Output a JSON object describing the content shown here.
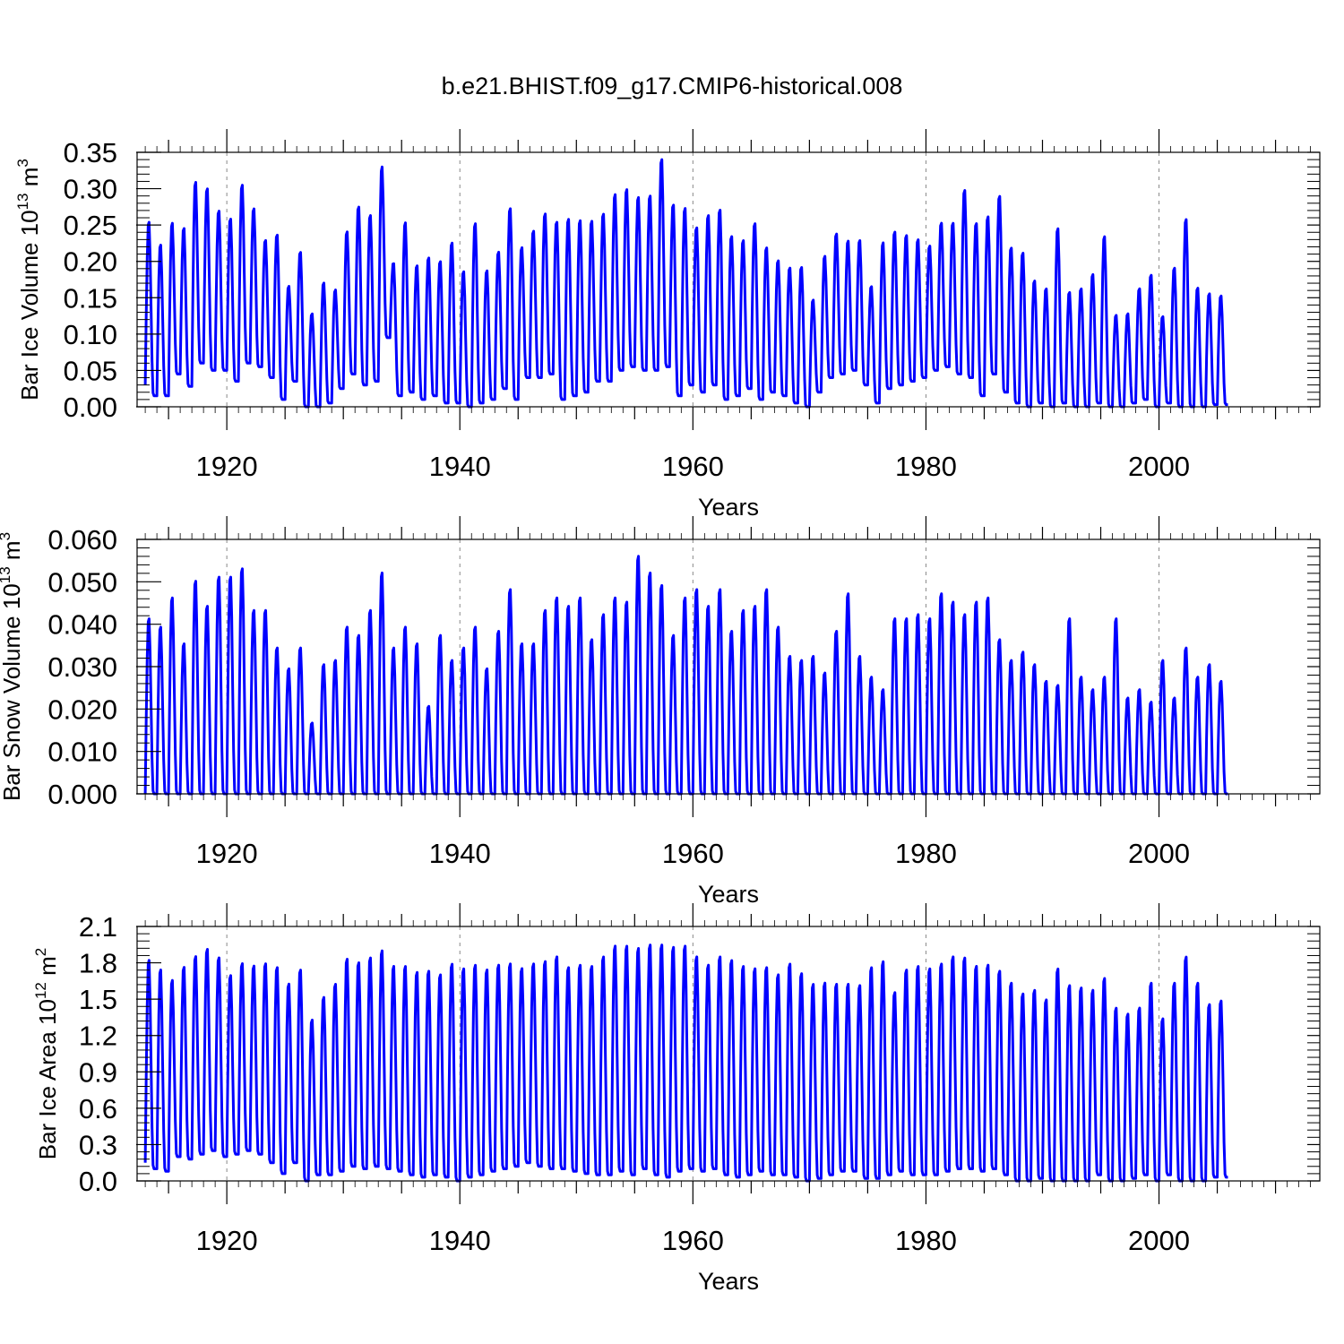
{
  "figure": {
    "title": "b.e21.BHIST.f09_g17.CMIP6-historical.008"
  },
  "style": {
    "line_color": "#0000ff",
    "grid_color": "#888888"
  },
  "chart_data": [
    {
      "type": "line",
      "name": "bar-ice-volume",
      "ylabel": "Bar Ice Volume 10",
      "yexp": "13",
      "yunit": " m",
      "yunit_sup": "3",
      "xlabel": "Years",
      "xlim": [
        1912.3,
        2013.8
      ],
      "ylim": [
        0,
        0.35
      ],
      "yticks": [
        0.0,
        0.05,
        0.1,
        0.15,
        0.2,
        0.25,
        0.3,
        0.35
      ],
      "yticklabels": [
        "0.00",
        "0.05",
        "0.10",
        "0.15",
        "0.20",
        "0.25",
        "0.30",
        "0.35"
      ],
      "xticks": [
        1920,
        1940,
        1960,
        1980,
        2000
      ],
      "xticklabels": [
        "1920",
        "1940",
        "1960",
        "1980",
        "2000"
      ],
      "series": [
        {
          "name": "Bar Ice Volume",
          "start_year": 1913,
          "annual_max": [
            0.258,
            0.226,
            0.256,
            0.249,
            0.313,
            0.304,
            0.273,
            0.262,
            0.309,
            0.276,
            0.232,
            0.24,
            0.168,
            0.216,
            0.13,
            0.173,
            0.163,
            0.244,
            0.279,
            0.267,
            0.334,
            0.2,
            0.257,
            0.197,
            0.208,
            0.203,
            0.229,
            0.189,
            0.256,
            0.19,
            0.216,
            0.277,
            0.222,
            0.245,
            0.269,
            0.258,
            0.262,
            0.26,
            0.259,
            0.269,
            0.296,
            0.303,
            0.292,
            0.294,
            0.345,
            0.282,
            0.277,
            0.25,
            0.267,
            0.275,
            0.238,
            0.232,
            0.256,
            0.222,
            0.204,
            0.194,
            0.195,
            0.149,
            0.21,
            0.241,
            0.231,
            0.232,
            0.168,
            0.229,
            0.244,
            0.239,
            0.233,
            0.224,
            0.256,
            0.256,
            0.302,
            0.256,
            0.265,
            0.294,
            0.222,
            0.215,
            0.176,
            0.165,
            0.249,
            0.16,
            0.165,
            0.185,
            0.238,
            0.128,
            0.13,
            0.165,
            0.184,
            0.126,
            0.194,
            0.262,
            0.166,
            0.158,
            0.155
          ],
          "annual_min": [
            0.03,
            0.015,
            0.015,
            0.045,
            0.028,
            0.06,
            0.05,
            0.05,
            0.035,
            0.06,
            0.055,
            0.04,
            0.01,
            0.035,
            0.0,
            0.0,
            0.005,
            0.025,
            0.045,
            0.03,
            0.035,
            0.095,
            0.015,
            0.02,
            0.01,
            0.015,
            0.005,
            0.005,
            0.0,
            0.005,
            0.01,
            0.025,
            0.01,
            0.04,
            0.04,
            0.045,
            0.01,
            0.015,
            0.02,
            0.035,
            0.035,
            0.05,
            0.055,
            0.05,
            0.05,
            0.055,
            0.015,
            0.03,
            0.02,
            0.03,
            0.01,
            0.015,
            0.025,
            0.01,
            0.02,
            0.015,
            0.005,
            0.0,
            0.02,
            0.04,
            0.045,
            0.05,
            0.03,
            0.005,
            0.025,
            0.03,
            0.035,
            0.04,
            0.05,
            0.055,
            0.045,
            0.04,
            0.015,
            0.045,
            0.02,
            0.005,
            0.0,
            0.005,
            0.0,
            0.005,
            0.0,
            0.0,
            0.005,
            0.0,
            0.0,
            0.005,
            0.01,
            0.0,
            0.005,
            0.0,
            0.0,
            0.0,
            0.003
          ]
        }
      ]
    },
    {
      "type": "line",
      "name": "bar-snow-volume",
      "ylabel": "Bar Snow Volume 10",
      "yexp": "13",
      "yunit": " m",
      "yunit_sup": "3",
      "xlabel": "Years",
      "xlim": [
        1912.3,
        2013.8
      ],
      "ylim": [
        0,
        0.06
      ],
      "yticks": [
        0.0,
        0.01,
        0.02,
        0.03,
        0.04,
        0.05,
        0.06
      ],
      "yticklabels": [
        "0.000",
        "0.010",
        "0.020",
        "0.030",
        "0.040",
        "0.050",
        "0.060"
      ],
      "xticks": [
        1920,
        1940,
        1960,
        1980,
        2000
      ],
      "xticklabels": [
        "1920",
        "1940",
        "1960",
        "1980",
        "2000"
      ],
      "series": [
        {
          "name": "Bar Snow Volume",
          "start_year": 1913,
          "annual_max": [
            0.042,
            0.04,
            0.047,
            0.036,
            0.051,
            0.045,
            0.052,
            0.052,
            0.054,
            0.044,
            0.044,
            0.035,
            0.03,
            0.035,
            0.017,
            0.031,
            0.032,
            0.04,
            0.038,
            0.044,
            0.053,
            0.035,
            0.04,
            0.036,
            0.021,
            0.038,
            0.032,
            0.035,
            0.04,
            0.03,
            0.039,
            0.049,
            0.036,
            0.036,
            0.044,
            0.047,
            0.045,
            0.047,
            0.037,
            0.043,
            0.047,
            0.046,
            0.057,
            0.053,
            0.05,
            0.038,
            0.047,
            0.049,
            0.045,
            0.049,
            0.039,
            0.044,
            0.045,
            0.049,
            0.04,
            0.033,
            0.032,
            0.033,
            0.029,
            0.039,
            0.048,
            0.033,
            0.028,
            0.025,
            0.042,
            0.042,
            0.043,
            0.042,
            0.048,
            0.046,
            0.043,
            0.046,
            0.047,
            0.037,
            0.032,
            0.034,
            0.031,
            0.027,
            0.026,
            0.042,
            0.028,
            0.025,
            0.028,
            0.042,
            0.023,
            0.025,
            0.022,
            0.032,
            0.023,
            0.035,
            0.028,
            0.031,
            0.027
          ],
          "annual_min": [
            0.0,
            0.0,
            0.0,
            0.0,
            0.0,
            0.0,
            0.0,
            0.0,
            0.0,
            0.0,
            0.0,
            0.0,
            0.0,
            0.0,
            0.0,
            0.0,
            0.0,
            0.0,
            0.0,
            0.0,
            0.0,
            0.0,
            0.0,
            0.0,
            0.0,
            0.0,
            0.0,
            0.0,
            0.0,
            0.0,
            0.0,
            0.0,
            0.0,
            0.0,
            0.0,
            0.0,
            0.0,
            0.0,
            0.0,
            0.0,
            0.0,
            0.0,
            0.0,
            0.0,
            0.0,
            0.0,
            0.0,
            0.0,
            0.0,
            0.0,
            0.0,
            0.0,
            0.0,
            0.0,
            0.0,
            0.0,
            0.0,
            0.0,
            0.0,
            0.0,
            0.0,
            0.0,
            0.0,
            0.0,
            0.0,
            0.0,
            0.0,
            0.0,
            0.0,
            0.0,
            0.0,
            0.0,
            0.0,
            0.0,
            0.0,
            0.0,
            0.0,
            0.0,
            0.0,
            0.0,
            0.0,
            0.0,
            0.0,
            0.0,
            0.0,
            0.0,
            0.0,
            0.0,
            0.0,
            0.0,
            0.0,
            0.0,
            0.0
          ]
        }
      ]
    },
    {
      "type": "line",
      "name": "bar-ice-area",
      "ylabel": "Bar Ice Area 10",
      "yexp": "12",
      "yunit": " m",
      "yunit_sup": "2",
      "xlabel": "Years",
      "xlim": [
        1912.3,
        2013.8
      ],
      "ylim": [
        0,
        2.1
      ],
      "yticks": [
        0.0,
        0.3,
        0.6,
        0.9,
        1.2,
        1.5,
        1.8,
        2.1
      ],
      "yticklabels": [
        "0.0",
        "0.3",
        "0.6",
        "0.9",
        "1.2",
        "1.5",
        "1.8",
        "2.1"
      ],
      "xticks": [
        1920,
        1940,
        1960,
        1980,
        2000
      ],
      "xticklabels": [
        "1920",
        "1940",
        "1960",
        "1980",
        "2000"
      ],
      "series": [
        {
          "name": "Bar Ice Area",
          "start_year": 1913,
          "annual_max": [
            1.85,
            1.77,
            1.68,
            1.79,
            1.88,
            1.94,
            1.87,
            1.72,
            1.82,
            1.8,
            1.82,
            1.79,
            1.65,
            1.77,
            1.35,
            1.54,
            1.65,
            1.86,
            1.83,
            1.87,
            1.93,
            1.8,
            1.8,
            1.75,
            1.76,
            1.73,
            1.82,
            1.78,
            1.81,
            1.77,
            1.81,
            1.82,
            1.78,
            1.82,
            1.84,
            1.88,
            1.79,
            1.81,
            1.8,
            1.88,
            1.97,
            1.97,
            1.95,
            1.98,
            1.98,
            1.96,
            1.97,
            1.88,
            1.81,
            1.88,
            1.85,
            1.8,
            1.78,
            1.79,
            1.73,
            1.82,
            1.74,
            1.65,
            1.66,
            1.65,
            1.65,
            1.64,
            1.79,
            1.84,
            1.58,
            1.77,
            1.8,
            1.78,
            1.82,
            1.88,
            1.87,
            1.8,
            1.81,
            1.76,
            1.66,
            1.57,
            1.6,
            1.52,
            1.78,
            1.64,
            1.62,
            1.6,
            1.7,
            1.45,
            1.4,
            1.45,
            1.66,
            1.36,
            1.66,
            1.88,
            1.66,
            1.48,
            1.51
          ],
          "annual_min": [
            0.15,
            0.1,
            0.08,
            0.2,
            0.18,
            0.22,
            0.25,
            0.2,
            0.22,
            0.25,
            0.22,
            0.15,
            0.06,
            0.15,
            0.0,
            0.05,
            0.05,
            0.08,
            0.12,
            0.1,
            0.12,
            0.1,
            0.08,
            0.05,
            0.03,
            0.05,
            0.03,
            0.0,
            0.03,
            0.05,
            0.08,
            0.1,
            0.12,
            0.15,
            0.12,
            0.1,
            0.1,
            0.08,
            0.06,
            0.05,
            0.05,
            0.08,
            0.05,
            0.1,
            0.05,
            0.03,
            0.08,
            0.1,
            0.08,
            0.1,
            0.05,
            0.03,
            0.05,
            0.08,
            0.05,
            0.05,
            0.03,
            0.0,
            0.02,
            0.05,
            0.08,
            0.08,
            0.02,
            0.02,
            0.05,
            0.08,
            0.05,
            0.05,
            0.05,
            0.08,
            0.1,
            0.1,
            0.08,
            0.1,
            0.05,
            0.0,
            0.0,
            0.02,
            0.0,
            0.0,
            0.0,
            0.0,
            0.05,
            0.0,
            0.0,
            0.02,
            0.05,
            0.0,
            0.05,
            0.0,
            0.0,
            0.0,
            0.03
          ]
        }
      ]
    }
  ]
}
